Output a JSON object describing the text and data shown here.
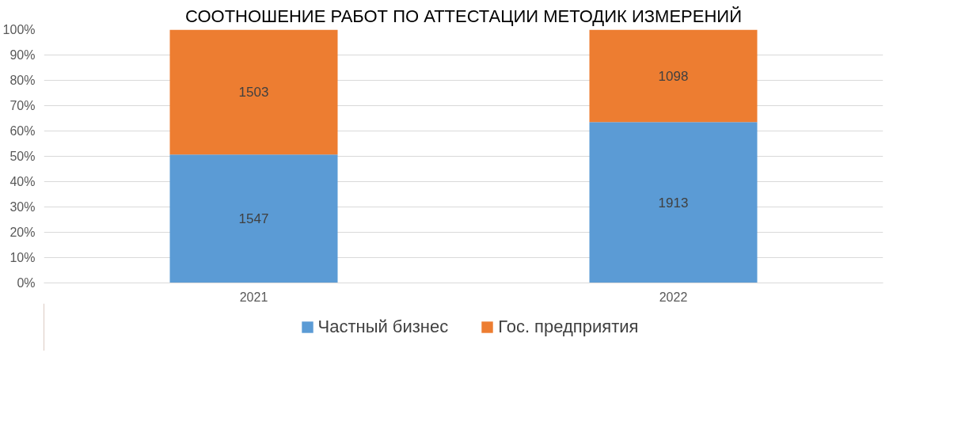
{
  "chart_data": {
    "type": "bar",
    "stacked": true,
    "title": "СООТНОШЕНИЕ РАБОТ ПО АТТЕСТАЦИИ МЕТОДИК ИЗМЕРЕНИЙ",
    "categories": [
      "2021",
      "2022"
    ],
    "series": [
      {
        "name": "Частный бизнес",
        "color": "#5b9bd5",
        "values": [
          50.7,
          63.5
        ]
      },
      {
        "name": "Гос. предприятия",
        "color": "#ed7d31",
        "values": [
          49.3,
          36.5
        ]
      }
    ],
    "annotations": [
      "1547",
      "1913",
      "1503",
      "1098"
    ],
    "ylim": [
      0,
      100
    ],
    "yticks": [
      {
        "value": 0,
        "label": "0%"
      },
      {
        "value": 10,
        "label": "10%"
      },
      {
        "value": 20,
        "label": "20%"
      },
      {
        "value": 30,
        "label": "30%"
      },
      {
        "value": 40,
        "label": "40%"
      },
      {
        "value": 50,
        "label": "50%"
      },
      {
        "value": 60,
        "label": "60%"
      },
      {
        "value": 70,
        "label": "70%"
      },
      {
        "value": 80,
        "label": "80%"
      },
      {
        "value": 90,
        "label": "90%"
      },
      {
        "value": 100,
        "label": "100%"
      }
    ],
    "grid": "y",
    "legend": "bottom"
  }
}
